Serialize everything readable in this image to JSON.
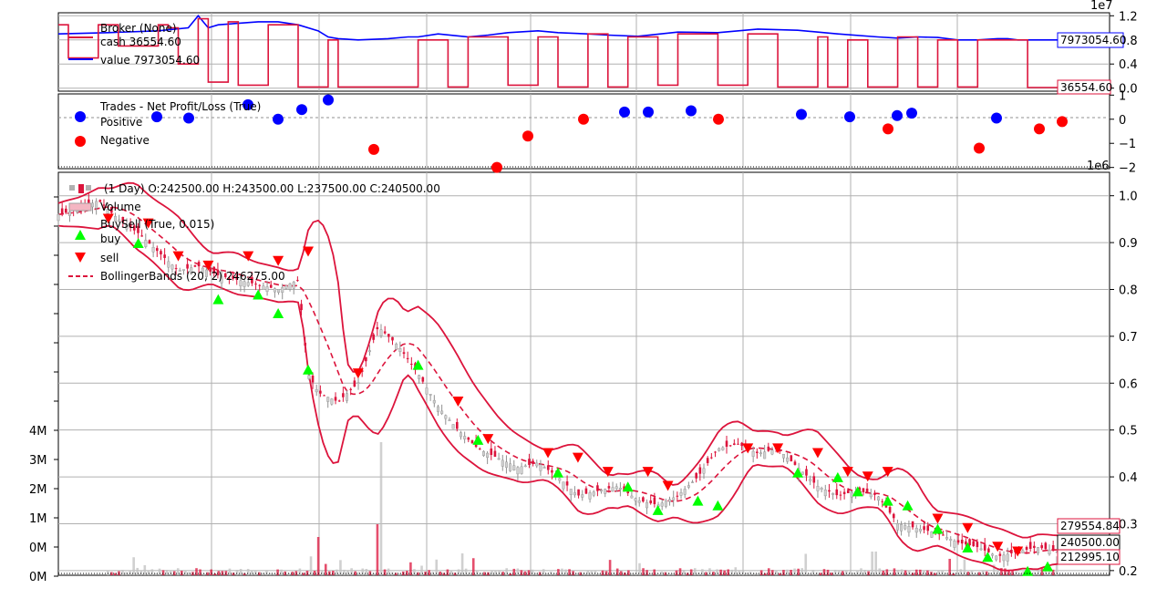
{
  "chart_data": [
    {
      "panel": "broker",
      "type": "line",
      "axis_multiplier": "1e7",
      "yticks": [
        "1.2",
        "0.8",
        "0.4",
        "0.0"
      ],
      "yvals": [
        1.2,
        0.8,
        0.4,
        0.0
      ],
      "ylim": [
        -0.05,
        1.25
      ],
      "legend": {
        "header": "Broker (None)",
        "cash": "cash 36554.60",
        "value": "value 7973054.60"
      },
      "last_value_label": "7973054.60",
      "last_cash_label": "36554.60",
      "colors": {
        "cash": "#dc143c",
        "value": "#0000ff"
      },
      "series": [
        {
          "name": "value 7973054.60",
          "x": [
            0,
            5,
            10,
            13,
            14,
            15,
            16,
            20,
            22,
            24,
            26,
            27,
            28,
            30,
            33,
            35,
            36,
            38,
            41,
            43,
            45,
            48,
            50,
            53,
            55,
            58,
            62,
            66,
            70,
            74,
            78,
            82,
            84,
            86,
            88,
            90,
            92,
            94,
            95,
            96,
            97,
            98,
            100
          ],
          "y": [
            0.9,
            0.92,
            0.95,
            1.0,
            1.2,
            1.0,
            1.05,
            1.1,
            1.1,
            1.05,
            0.95,
            0.85,
            0.82,
            0.8,
            0.82,
            0.85,
            0.85,
            0.9,
            0.85,
            0.88,
            0.92,
            0.95,
            0.92,
            0.9,
            0.88,
            0.86,
            0.93,
            0.92,
            0.98,
            0.96,
            0.9,
            0.85,
            0.83,
            0.85,
            0.84,
            0.8,
            0.8,
            0.82,
            0.82,
            0.8,
            0.8,
            0.8,
            0.8
          ]
        },
        {
          "name": "cash 36554.60",
          "x": [
            0,
            1,
            1,
            4,
            4,
            6,
            6,
            10,
            10,
            11,
            11,
            12,
            12,
            14,
            14,
            15,
            15,
            17,
            17,
            18,
            18,
            21,
            21,
            24,
            24,
            27,
            27,
            28,
            28,
            36,
            36,
            39,
            39,
            41,
            41,
            45,
            45,
            48,
            48,
            50,
            50,
            53,
            53,
            55,
            55,
            57,
            57,
            60,
            60,
            62,
            62,
            66,
            66,
            69,
            69,
            72,
            72,
            76,
            76,
            77,
            77,
            79,
            79,
            81,
            81,
            84,
            84,
            86,
            86,
            88,
            88,
            90,
            90,
            92,
            92,
            97,
            97,
            100
          ],
          "y": [
            1.05,
            1.05,
            0.5,
            0.5,
            1.05,
            1.05,
            0.7,
            0.7,
            1.05,
            1.05,
            1.0,
            1.0,
            0.4,
            0.4,
            1.15,
            1.15,
            0.1,
            0.1,
            1.1,
            1.1,
            0.05,
            0.05,
            1.05,
            1.05,
            0.02,
            0.02,
            0.8,
            0.8,
            0.02,
            0.02,
            0.8,
            0.8,
            0.02,
            0.02,
            0.85,
            0.85,
            0.05,
            0.05,
            0.85,
            0.85,
            0.02,
            0.02,
            0.9,
            0.9,
            0.02,
            0.02,
            0.85,
            0.85,
            0.05,
            0.05,
            0.9,
            0.9,
            0.05,
            0.05,
            0.9,
            0.9,
            0.02,
            0.02,
            0.85,
            0.85,
            0.02,
            0.02,
            0.8,
            0.8,
            0.02,
            0.02,
            0.85,
            0.85,
            0.02,
            0.02,
            0.8,
            0.8,
            0.02,
            0.02,
            0.8,
            0.8,
            0.01,
            0.01
          ]
        }
      ]
    },
    {
      "panel": "trades",
      "type": "scatter",
      "axis_multiplier": "1e6",
      "yticks": [
        "1",
        "0",
        "−1",
        "−2"
      ],
      "yvals": [
        1,
        0,
        -1,
        -2
      ],
      "ylim": [
        -2.05,
        1.05
      ],
      "legend": {
        "header": "Trades - Net Profit/Loss (True)",
        "positive": "Positive",
        "negative": "Negative"
      },
      "colors": {
        "positive": "#0000ff",
        "negative": "#ff0000"
      },
      "series": [
        {
          "name": "Positive",
          "x": [
            10,
            13,
            20,
            21,
            22,
            25
          ],
          "y": [
            0.1,
            0.05,
            0.6,
            0.05,
            0.4,
            0.8
          ]
        },
        {
          "name": "Negative",
          "x": [
            30
          ],
          "y": [
            -1.2
          ]
        }
      ],
      "points": [
        {
          "x": 98,
          "y": 0.1,
          "s": "pos"
        },
        {
          "x": 133,
          "y": 0.05,
          "s": "pos"
        },
        {
          "x": 198,
          "y": 0.6,
          "s": "pos"
        },
        {
          "x": 231,
          "y": 0.0,
          "s": "pos"
        },
        {
          "x": 257,
          "y": 0.4,
          "s": "pos"
        },
        {
          "x": 286,
          "y": 0.8,
          "s": "pos"
        },
        {
          "x": 336,
          "y": -1.25,
          "s": "neg"
        },
        {
          "x": 471,
          "y": -2.0,
          "s": "neg"
        },
        {
          "x": 505,
          "y": -0.7,
          "s": "neg"
        },
        {
          "x": 566,
          "y": 0.0,
          "s": "neg"
        },
        {
          "x": 611,
          "y": 0.3,
          "s": "pos"
        },
        {
          "x": 637,
          "y": 0.3,
          "s": "pos"
        },
        {
          "x": 684,
          "y": 0.35,
          "s": "pos"
        },
        {
          "x": 714,
          "y": 0.0,
          "s": "neg"
        },
        {
          "x": 805,
          "y": 0.2,
          "s": "pos"
        },
        {
          "x": 858,
          "y": 0.1,
          "s": "pos"
        },
        {
          "x": 900,
          "y": -0.4,
          "s": "neg"
        },
        {
          "x": 910,
          "y": 0.15,
          "s": "pos"
        },
        {
          "x": 926,
          "y": 0.25,
          "s": "pos"
        },
        {
          "x": 1000,
          "y": -1.2,
          "s": "neg"
        },
        {
          "x": 1019,
          "y": 0.05,
          "s": "pos"
        },
        {
          "x": 1066,
          "y": -0.4,
          "s": "neg"
        },
        {
          "x": 1091,
          "y": -0.1,
          "s": "neg"
        }
      ]
    },
    {
      "panel": "price",
      "type": "candlestick",
      "yticks": [
        "1.0",
        "0.9",
        "0.8",
        "0.7",
        "0.6",
        "0.5",
        "0.4",
        "0.3",
        "0.2"
      ],
      "yvals": [
        1.0,
        0.9,
        0.8,
        0.7,
        0.6,
        0.5,
        0.4,
        0.3,
        0.2
      ],
      "ylim": [
        0.19,
        1.05
      ],
      "volume_ticks": [
        "4M",
        "3M",
        "2M",
        "1M",
        "0M",
        "0M"
      ],
      "legend": {
        "ohlc": "(1 Day) O:242500.00 H:243500.00 L:237500.00 C:240500.00",
        "volume": "Volume",
        "buysell": "BuySell (True, 0.015)",
        "buy": "buy",
        "sell": "sell",
        "bbands": "BollingerBands (20, 2) 246275.00"
      },
      "last_labels": {
        "top": "279554.84",
        "mid": "240500.00",
        "bot": "212995.10"
      },
      "colors": {
        "up": "#d0d0d0",
        "down": "#dc143c",
        "bands": "#dc143c",
        "buy": "#00ff00",
        "sell": "#ff0000"
      },
      "close_path": {
        "x": [
          0,
          2,
          4,
          6,
          8,
          10,
          12,
          14,
          16,
          18,
          20,
          22,
          24,
          25,
          26,
          28,
          30,
          32,
          34,
          36,
          38,
          40,
          42,
          44,
          46,
          48,
          50,
          52,
          54,
          56,
          58,
          60,
          62,
          64,
          66,
          68,
          70,
          72,
          74,
          76,
          78,
          80,
          82,
          84,
          86,
          88,
          90,
          92,
          94,
          96,
          98,
          100
        ],
        "y": [
          0.96,
          0.97,
          0.99,
          0.95,
          0.92,
          0.88,
          0.84,
          0.85,
          0.83,
          0.82,
          0.81,
          0.8,
          0.82,
          0.62,
          0.58,
          0.56,
          0.6,
          0.72,
          0.68,
          0.62,
          0.55,
          0.5,
          0.46,
          0.44,
          0.42,
          0.43,
          0.4,
          0.36,
          0.37,
          0.38,
          0.35,
          0.34,
          0.36,
          0.4,
          0.46,
          0.47,
          0.45,
          0.46,
          0.42,
          0.38,
          0.36,
          0.37,
          0.36,
          0.3,
          0.29,
          0.28,
          0.26,
          0.25,
          0.23,
          0.24,
          0.25,
          0.24
        ]
      },
      "buy_points": [
        {
          "i": 8,
          "y": 0.91
        },
        {
          "i": 16,
          "y": 0.79
        },
        {
          "i": 20,
          "y": 0.8
        },
        {
          "i": 22,
          "y": 0.76
        },
        {
          "i": 25,
          "y": 0.64
        },
        {
          "i": 36,
          "y": 0.65
        },
        {
          "i": 42,
          "y": 0.49
        },
        {
          "i": 50,
          "y": 0.42
        },
        {
          "i": 57,
          "y": 0.39
        },
        {
          "i": 60,
          "y": 0.34
        },
        {
          "i": 64,
          "y": 0.36
        },
        {
          "i": 66,
          "y": 0.35
        },
        {
          "i": 74,
          "y": 0.42
        },
        {
          "i": 78,
          "y": 0.41
        },
        {
          "i": 80,
          "y": 0.38
        },
        {
          "i": 83,
          "y": 0.36
        },
        {
          "i": 85,
          "y": 0.35
        },
        {
          "i": 88,
          "y": 0.3
        },
        {
          "i": 91,
          "y": 0.26
        },
        {
          "i": 93,
          "y": 0.24
        },
        {
          "i": 97,
          "y": 0.21
        },
        {
          "i": 99,
          "y": 0.22
        }
      ],
      "sell_points": [
        {
          "i": 5,
          "y": 0.94
        },
        {
          "i": 9,
          "y": 0.93
        },
        {
          "i": 12,
          "y": 0.86
        },
        {
          "i": 15,
          "y": 0.84
        },
        {
          "i": 19,
          "y": 0.86
        },
        {
          "i": 22,
          "y": 0.85
        },
        {
          "i": 25,
          "y": 0.87
        },
        {
          "i": 30,
          "y": 0.61
        },
        {
          "i": 40,
          "y": 0.55
        },
        {
          "i": 43,
          "y": 0.47
        },
        {
          "i": 49,
          "y": 0.44
        },
        {
          "i": 52,
          "y": 0.43
        },
        {
          "i": 55,
          "y": 0.4
        },
        {
          "i": 59,
          "y": 0.4
        },
        {
          "i": 61,
          "y": 0.37
        },
        {
          "i": 69,
          "y": 0.45
        },
        {
          "i": 72,
          "y": 0.45
        },
        {
          "i": 76,
          "y": 0.44
        },
        {
          "i": 79,
          "y": 0.4
        },
        {
          "i": 81,
          "y": 0.39
        },
        {
          "i": 83,
          "y": 0.4
        },
        {
          "i": 88,
          "y": 0.3
        },
        {
          "i": 91,
          "y": 0.28
        },
        {
          "i": 94,
          "y": 0.24
        },
        {
          "i": 96,
          "y": 0.23
        }
      ]
    }
  ],
  "axis_labels": {
    "broker_exp": "1e7",
    "trades_exp": "1e6"
  }
}
